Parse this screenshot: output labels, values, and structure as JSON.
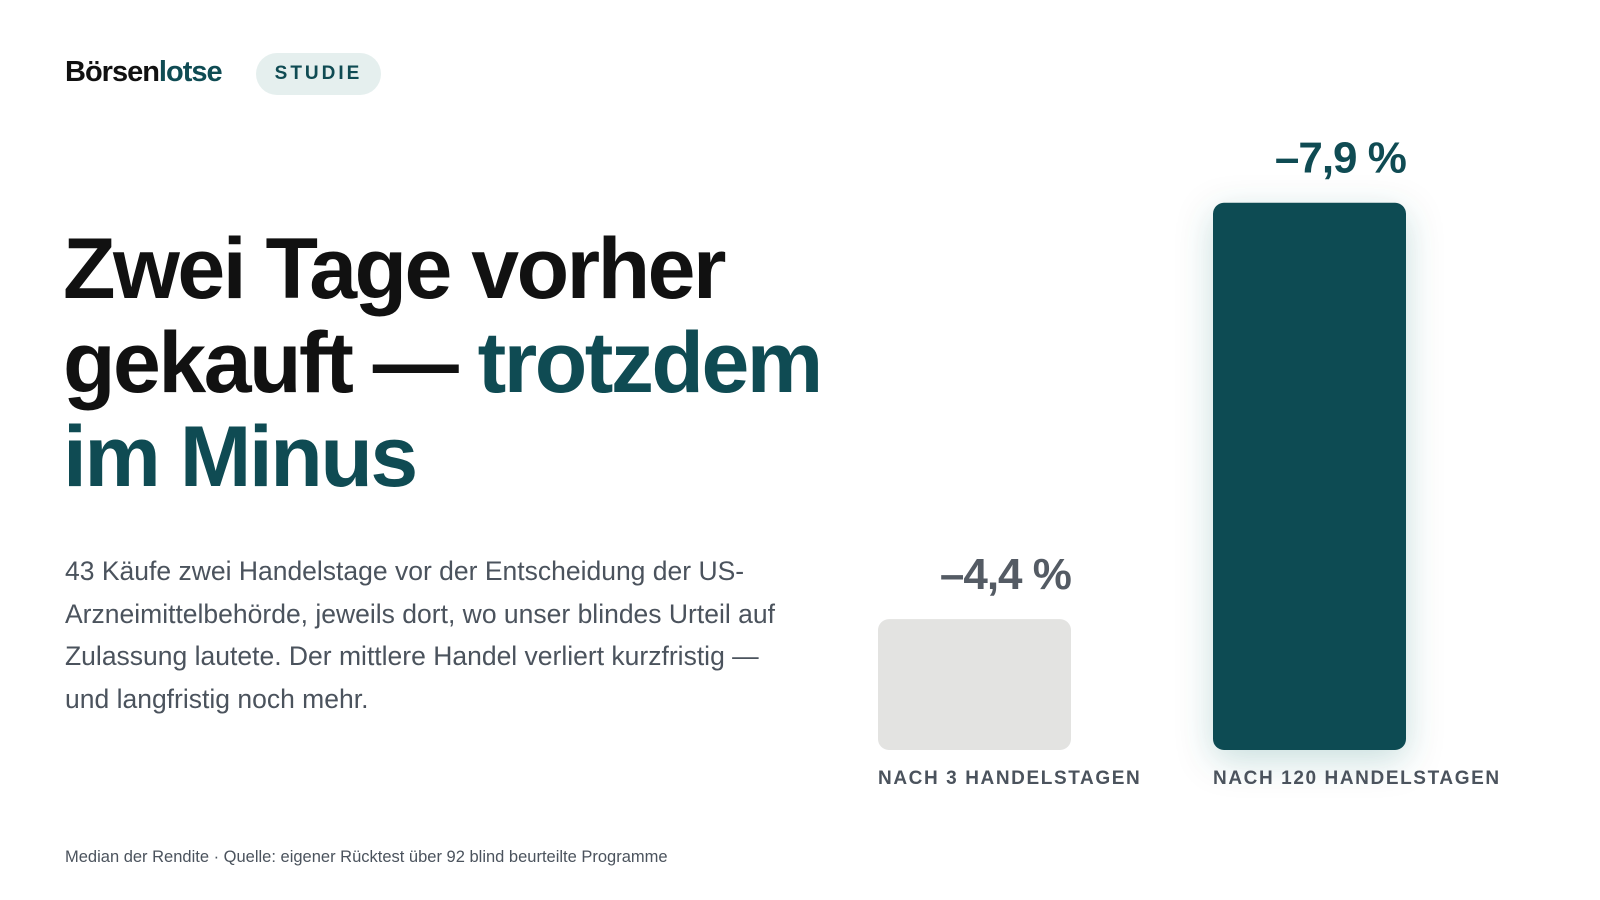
{
  "brand": [
    "Börsen",
    "lotse"
  ],
  "badge": "STUDIE",
  "headline": [
    "Zwei Tage vorher",
    "gekauft —",
    "trotzdem",
    "im Minus"
  ],
  "body": "43 Käufe zwei Handelstage vor der Entscheidung der US-Arzneimittelbehörde, jeweils dort, wo unser blindes Urteil auf Zulassung lautete. Der mittlere Handel verliert kurzfristig — und langfristig noch mehr.",
  "footnote": "Median der Rendite · Quelle: eigener Rücktest über 92 blind beurteilte Programme",
  "chart_data": {
    "type": "bar",
    "categories": [
      "NACH 3 HANDELSTAGEN",
      "NACH 120 HANDELSTAGEN"
    ],
    "values": [
      -4.4,
      -7.9
    ],
    "value_labels": [
      "–4,4 %",
      "–7,9 %"
    ],
    "colors": [
      "#e3e3e1",
      "#0f4b53"
    ],
    "label_colors": [
      "#545b64",
      "#0f4b53"
    ],
    "ylim": [
      -3.3,
      -8.1
    ]
  }
}
